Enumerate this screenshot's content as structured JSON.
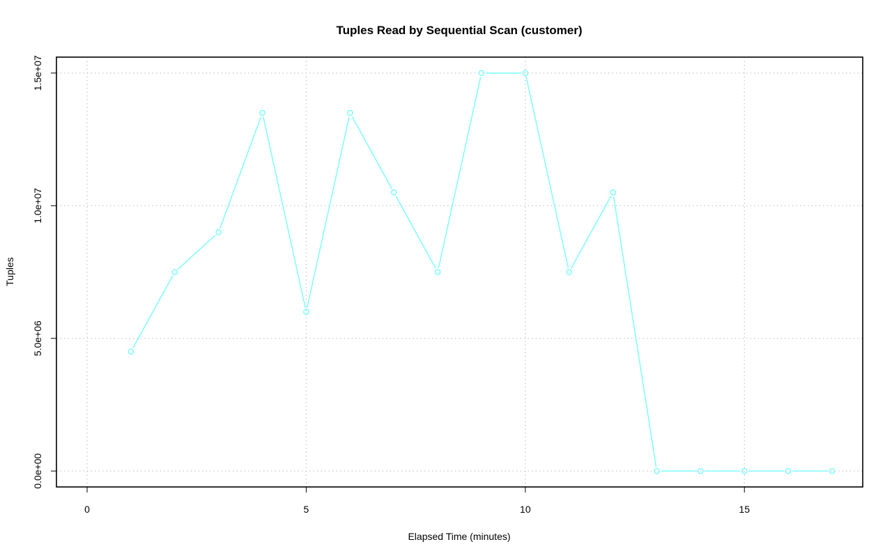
{
  "chart_data": {
    "type": "line",
    "title": "Tuples Read by Sequential Scan (customer)",
    "xlabel": "Elapsed Time (minutes)",
    "ylabel": "Tuples",
    "xlim": [
      -0.7,
      17.7
    ],
    "ylim": [
      -600000,
      15600000
    ],
    "x_ticks": [
      0,
      5,
      10,
      15
    ],
    "x_tick_labels": [
      "0",
      "5",
      "10",
      "15"
    ],
    "y_ticks": [
      0,
      5000000,
      10000000,
      15000000
    ],
    "y_tick_labels": [
      "0.0e+00",
      "5.0e+06",
      "1.0e+07",
      "1.5e+07"
    ],
    "grid": true,
    "series": [
      {
        "color": "#7ffcfc",
        "marker": "circle",
        "x": [
          1,
          2,
          3,
          4,
          5,
          6,
          7,
          8,
          9,
          10,
          11,
          12,
          13,
          14,
          15,
          16,
          17
        ],
        "values": [
          4500000,
          7500000,
          9000000,
          13500000,
          6000000,
          13500000,
          10500000,
          7500000,
          15000000,
          15000000,
          7500000,
          10500000,
          0,
          0,
          0,
          0,
          0
        ]
      }
    ]
  }
}
